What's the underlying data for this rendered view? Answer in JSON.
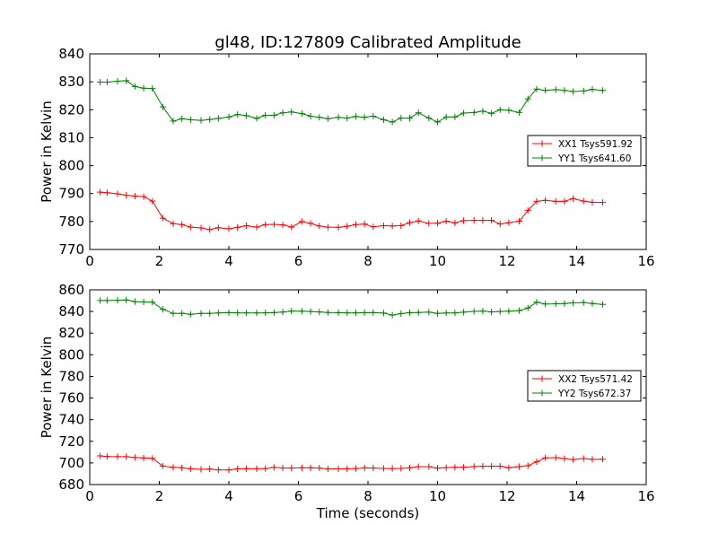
{
  "title": "gl48, ID:127809 Calibrated Amplitude",
  "colors": {
    "xx": "#ff0000",
    "yy": "#008000"
  },
  "chart_data": [
    {
      "type": "line",
      "title": "gl48, ID:127809 Calibrated Amplitude",
      "xlabel": "",
      "ylabel": "Power in Kelvin",
      "xlim": [
        0,
        16
      ],
      "ylim": [
        770,
        840
      ],
      "xticks": [
        "0",
        "2",
        "4",
        "6",
        "8",
        "10",
        "12",
        "14",
        "16"
      ],
      "yticks": [
        "770",
        "780",
        "790",
        "800",
        "810",
        "820",
        "830",
        "840"
      ],
      "grid": false,
      "legend": "right",
      "x": [
        0.3,
        0.5,
        0.8,
        1.05,
        1.3,
        1.55,
        1.8,
        2.1,
        2.4,
        2.65,
        2.9,
        3.2,
        3.45,
        3.7,
        4.0,
        4.25,
        4.5,
        4.8,
        5.05,
        5.3,
        5.55,
        5.8,
        6.1,
        6.35,
        6.6,
        6.85,
        7.15,
        7.4,
        7.65,
        7.9,
        8.15,
        8.45,
        8.7,
        8.95,
        9.2,
        9.45,
        9.75,
        10.0,
        10.25,
        10.5,
        10.75,
        11.05,
        11.3,
        11.55,
        11.8,
        12.05,
        12.35,
        12.6,
        12.85,
        13.1,
        13.4,
        13.65,
        13.9,
        14.2,
        14.45,
        14.75
      ],
      "series": [
        {
          "name": "XX1 Tsys591.92",
          "color": "#ff0000",
          "values": [
            790.5,
            790.3,
            789.9,
            789.4,
            789.1,
            788.9,
            787.3,
            781.2,
            779.2,
            778.9,
            778.0,
            777.7,
            777.1,
            777.8,
            777.4,
            777.9,
            778.5,
            778.0,
            778.9,
            779.0,
            778.8,
            778.0,
            780.0,
            779.3,
            778.4,
            778.0,
            777.9,
            778.3,
            778.9,
            779.1,
            778.1,
            778.5,
            778.4,
            778.5,
            779.6,
            780.2,
            779.3,
            779.4,
            780.1,
            779.5,
            780.3,
            780.4,
            780.4,
            780.4,
            779.1,
            779.6,
            780.1,
            784.0,
            787.2,
            787.6,
            787.2,
            787.2,
            788.2,
            787.3,
            786.9,
            786.8
          ]
        },
        {
          "name": "YY1 Tsys641.60",
          "color": "#008000",
          "values": [
            829.9,
            829.9,
            830.2,
            830.4,
            828.3,
            827.7,
            827.6,
            821.0,
            815.9,
            816.8,
            816.4,
            816.2,
            816.5,
            816.9,
            817.4,
            818.3,
            817.9,
            816.9,
            818.0,
            818.0,
            818.9,
            819.2,
            818.6,
            817.7,
            817.3,
            816.8,
            817.3,
            817.0,
            817.6,
            817.3,
            817.7,
            816.4,
            815.6,
            817.0,
            817.0,
            818.9,
            817.0,
            815.6,
            817.4,
            817.4,
            818.8,
            819.0,
            819.5,
            818.7,
            820.0,
            819.8,
            819.0,
            823.9,
            827.4,
            826.9,
            827.2,
            826.9,
            826.5,
            826.7,
            827.3,
            826.9
          ]
        }
      ]
    },
    {
      "type": "line",
      "title": "",
      "xlabel": "Time (seconds)",
      "ylabel": "Power in Kelvin",
      "xlim": [
        0,
        16
      ],
      "ylim": [
        680,
        860
      ],
      "xticks": [
        "0",
        "2",
        "4",
        "6",
        "8",
        "10",
        "12",
        "14",
        "16"
      ],
      "yticks": [
        "680",
        "700",
        "720",
        "740",
        "760",
        "780",
        "800",
        "820",
        "840",
        "860"
      ],
      "grid": false,
      "legend": "right",
      "x": [
        0.3,
        0.5,
        0.8,
        1.05,
        1.3,
        1.55,
        1.8,
        2.1,
        2.4,
        2.65,
        2.9,
        3.2,
        3.45,
        3.7,
        4.0,
        4.25,
        4.5,
        4.8,
        5.05,
        5.3,
        5.55,
        5.8,
        6.1,
        6.35,
        6.6,
        6.85,
        7.15,
        7.4,
        7.65,
        7.9,
        8.15,
        8.45,
        8.7,
        8.95,
        9.2,
        9.45,
        9.75,
        10.0,
        10.25,
        10.5,
        10.75,
        11.05,
        11.3,
        11.55,
        11.8,
        12.05,
        12.35,
        12.6,
        12.85,
        13.1,
        13.4,
        13.65,
        13.9,
        14.2,
        14.45,
        14.75
      ],
      "series": [
        {
          "name": "XX2 Tsys571.42",
          "color": "#ff0000",
          "values": [
            706.5,
            706.0,
            705.8,
            705.8,
            705.0,
            704.6,
            704.3,
            697.1,
            695.9,
            695.5,
            694.6,
            694.1,
            694.3,
            693.6,
            693.5,
            694.5,
            694.7,
            694.6,
            694.8,
            695.9,
            695.3,
            695.3,
            695.5,
            695.5,
            695.3,
            694.5,
            694.5,
            694.6,
            694.8,
            695.4,
            695.3,
            694.9,
            694.8,
            694.9,
            695.4,
            696.6,
            696.6,
            695.1,
            695.7,
            695.9,
            696.0,
            696.7,
            696.9,
            696.9,
            697.0,
            695.5,
            696.6,
            697.5,
            701.0,
            704.7,
            704.9,
            704.0,
            703.1,
            704.1,
            703.3,
            703.4
          ]
        },
        {
          "name": "YY2 Tsys672.37",
          "color": "#008000",
          "values": [
            850.1,
            850.1,
            850.4,
            850.7,
            849.1,
            848.8,
            848.6,
            842.0,
            838.2,
            838.3,
            837.4,
            838.2,
            838.3,
            838.6,
            839.0,
            838.7,
            838.7,
            838.6,
            838.7,
            839.0,
            839.5,
            840.4,
            840.3,
            840.0,
            839.6,
            839.1,
            838.9,
            838.7,
            838.7,
            838.9,
            839.0,
            838.5,
            836.7,
            838.0,
            838.9,
            839.1,
            839.4,
            838.2,
            838.6,
            838.6,
            839.4,
            840.1,
            840.4,
            839.6,
            840.0,
            840.3,
            840.8,
            843.2,
            848.6,
            846.9,
            847.1,
            847.4,
            848.0,
            848.3,
            847.3,
            846.5
          ]
        }
      ]
    }
  ]
}
